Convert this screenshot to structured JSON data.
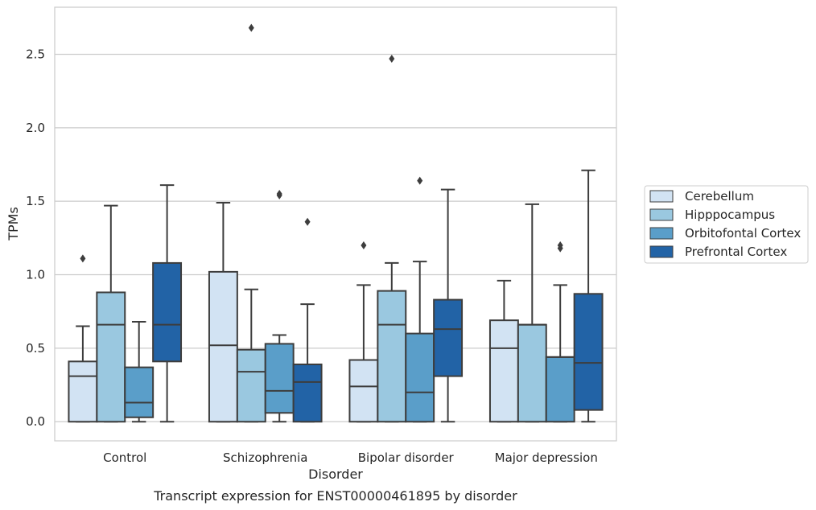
{
  "chart_data": {
    "type": "box",
    "caption": "Transcript expression for ENST00000461895 by disorder",
    "xlabel": "Disorder",
    "ylabel": "TPMs",
    "ylim": [
      -0.13,
      2.82
    ],
    "yticks": [
      "0.0",
      "0.5",
      "1.0",
      "1.5",
      "2.0",
      "2.5"
    ],
    "grid": true,
    "legend_position": "right",
    "categories": [
      "Control",
      "Schizophrenia",
      "Bipolar disorder",
      "Major depression"
    ],
    "series": [
      {
        "name": "Cerebellum",
        "color": "#d2e3f3",
        "boxes": [
          {
            "whislo": 0.0,
            "q1": 0.0,
            "med": 0.31,
            "q3": 0.41,
            "whishi": 0.65,
            "fliers": [
              1.11
            ]
          },
          {
            "whislo": 0.0,
            "q1": 0.0,
            "med": 0.52,
            "q3": 1.02,
            "whishi": 1.49,
            "fliers": []
          },
          {
            "whislo": 0.0,
            "q1": 0.0,
            "med": 0.24,
            "q3": 0.42,
            "whishi": 0.93,
            "fliers": [
              1.2
            ]
          },
          {
            "whislo": 0.0,
            "q1": 0.0,
            "med": 0.5,
            "q3": 0.69,
            "whishi": 0.96,
            "fliers": []
          }
        ]
      },
      {
        "name": "Hipppocampus",
        "color": "#9ac8e0",
        "boxes": [
          {
            "whislo": 0.0,
            "q1": 0.0,
            "med": 0.66,
            "q3": 0.88,
            "whishi": 1.47,
            "fliers": []
          },
          {
            "whislo": 0.0,
            "q1": 0.0,
            "med": 0.34,
            "q3": 0.49,
            "whishi": 0.9,
            "fliers": [
              2.68
            ]
          },
          {
            "whislo": 0.0,
            "q1": 0.0,
            "med": 0.66,
            "q3": 0.89,
            "whishi": 1.08,
            "fliers": [
              2.47
            ]
          },
          {
            "whislo": 0.0,
            "q1": 0.0,
            "med": 0.66,
            "q3": 0.66,
            "whishi": 1.48,
            "fliers": []
          }
        ]
      },
      {
        "name": "Orbitofontal Cortex",
        "color": "#5a9ec9",
        "boxes": [
          {
            "whislo": 0.0,
            "q1": 0.03,
            "med": 0.13,
            "q3": 0.37,
            "whishi": 0.68,
            "fliers": []
          },
          {
            "whislo": 0.0,
            "q1": 0.06,
            "med": 0.21,
            "q3": 0.53,
            "whishi": 0.59,
            "fliers": [
              1.55,
              1.54
            ]
          },
          {
            "whislo": 0.0,
            "q1": 0.0,
            "med": 0.2,
            "q3": 0.6,
            "whishi": 1.09,
            "fliers": [
              1.64
            ]
          },
          {
            "whislo": 0.0,
            "q1": 0.0,
            "med": 0.44,
            "q3": 0.44,
            "whishi": 0.93,
            "fliers": [
              1.2,
              1.18
            ]
          }
        ]
      },
      {
        "name": "Prefrontal Cortex",
        "color": "#2263a6",
        "boxes": [
          {
            "whislo": 0.0,
            "q1": 0.41,
            "med": 0.66,
            "q3": 1.08,
            "whishi": 1.61,
            "fliers": []
          },
          {
            "whislo": 0.0,
            "q1": 0.0,
            "med": 0.27,
            "q3": 0.39,
            "whishi": 0.8,
            "fliers": [
              1.36
            ]
          },
          {
            "whislo": 0.0,
            "q1": 0.31,
            "med": 0.63,
            "q3": 0.83,
            "whishi": 1.58,
            "fliers": []
          },
          {
            "whislo": 0.0,
            "q1": 0.08,
            "med": 0.4,
            "q3": 0.87,
            "whishi": 1.71,
            "fliers": []
          }
        ]
      }
    ]
  }
}
